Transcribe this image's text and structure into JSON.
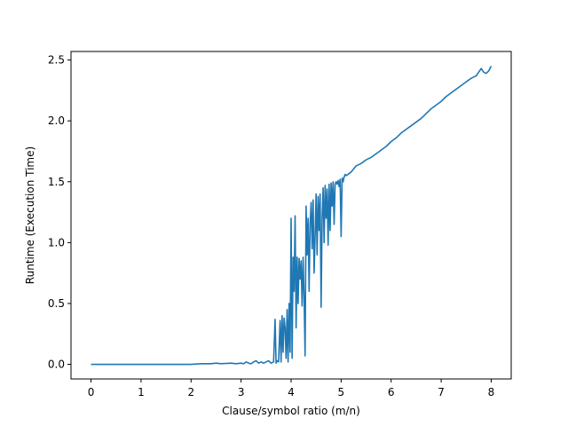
{
  "chart_data": {
    "type": "line",
    "title": "",
    "xlabel": "Clause/symbol ratio (m/n)",
    "ylabel": "Runtime (Execution Time)",
    "xlim": [
      -0.4,
      8.4
    ],
    "ylim": [
      -0.12,
      2.57
    ],
    "xticks": [
      0,
      1,
      2,
      3,
      4,
      5,
      6,
      7,
      8
    ],
    "yticks": [
      0.0,
      0.5,
      1.0,
      1.5,
      2.0,
      2.5
    ],
    "xtick_labels": [
      "0",
      "1",
      "2",
      "3",
      "4",
      "5",
      "6",
      "7",
      "8"
    ],
    "ytick_labels": [
      "0.0",
      "0.5",
      "1.0",
      "1.5",
      "2.0",
      "2.5"
    ],
    "grid": false,
    "legend": "none",
    "series": [
      {
        "color": "#1f77b4",
        "x": [
          0.0,
          0.5,
          1.0,
          1.5,
          2.0,
          2.2,
          2.4,
          2.5,
          2.6,
          2.8,
          2.9,
          3.0,
          3.05,
          3.1,
          3.15,
          3.2,
          3.25,
          3.3,
          3.35,
          3.4,
          3.45,
          3.5,
          3.55,
          3.6,
          3.65,
          3.68,
          3.7,
          3.72,
          3.75,
          3.78,
          3.8,
          3.82,
          3.84,
          3.86,
          3.88,
          3.9,
          3.92,
          3.94,
          3.96,
          3.98,
          4.0,
          4.02,
          4.04,
          4.06,
          4.08,
          4.1,
          4.12,
          4.14,
          4.16,
          4.18,
          4.2,
          4.22,
          4.24,
          4.26,
          4.28,
          4.3,
          4.32,
          4.34,
          4.36,
          4.38,
          4.4,
          4.42,
          4.44,
          4.46,
          4.48,
          4.5,
          4.52,
          4.54,
          4.56,
          4.58,
          4.6,
          4.62,
          4.64,
          4.66,
          4.68,
          4.7,
          4.72,
          4.74,
          4.76,
          4.78,
          4.8,
          4.82,
          4.84,
          4.86,
          4.88,
          4.9,
          4.92,
          4.94,
          4.96,
          4.98,
          5.0,
          5.02,
          5.04,
          5.06,
          5.08,
          5.1,
          5.2,
          5.3,
          5.4,
          5.5,
          5.6,
          5.7,
          5.8,
          5.9,
          6.0,
          6.1,
          6.2,
          6.3,
          6.4,
          6.5,
          6.6,
          6.7,
          6.8,
          6.9,
          7.0,
          7.1,
          7.2,
          7.3,
          7.4,
          7.5,
          7.6,
          7.7,
          7.8,
          7.85,
          7.9,
          7.95,
          8.0
        ],
        "y": [
          0.0,
          0.0,
          0.0,
          0.0,
          0.0,
          0.005,
          0.005,
          0.01,
          0.005,
          0.01,
          0.005,
          0.01,
          0.005,
          0.02,
          0.01,
          0.005,
          0.02,
          0.03,
          0.01,
          0.02,
          0.01,
          0.02,
          0.03,
          0.01,
          0.02,
          0.37,
          0.01,
          0.03,
          0.02,
          0.36,
          0.02,
          0.4,
          0.1,
          0.38,
          0.3,
          0.05,
          0.45,
          0.02,
          0.5,
          0.1,
          1.2,
          0.05,
          0.88,
          0.6,
          1.22,
          0.3,
          0.88,
          0.5,
          0.87,
          0.7,
          0.85,
          0.48,
          0.88,
          0.55,
          0.07,
          1.3,
          0.9,
          1.2,
          0.6,
          1.15,
          1.33,
          0.95,
          1.35,
          0.75,
          1.05,
          1.4,
          0.9,
          1.38,
          1.1,
          1.4,
          0.47,
          1.2,
          1.45,
          1.0,
          1.47,
          1.2,
          1.44,
          0.98,
          1.48,
          1.1,
          1.49,
          1.3,
          1.5,
          1.15,
          1.48,
          1.5,
          1.48,
          1.51,
          1.46,
          1.52,
          1.05,
          1.53,
          1.5,
          1.54,
          1.56,
          1.55,
          1.58,
          1.63,
          1.65,
          1.68,
          1.7,
          1.73,
          1.76,
          1.79,
          1.83,
          1.86,
          1.9,
          1.93,
          1.96,
          1.99,
          2.02,
          2.06,
          2.1,
          2.13,
          2.16,
          2.2,
          2.23,
          2.26,
          2.29,
          2.32,
          2.35,
          2.37,
          2.43,
          2.4,
          2.39,
          2.41,
          2.45
        ]
      }
    ]
  }
}
